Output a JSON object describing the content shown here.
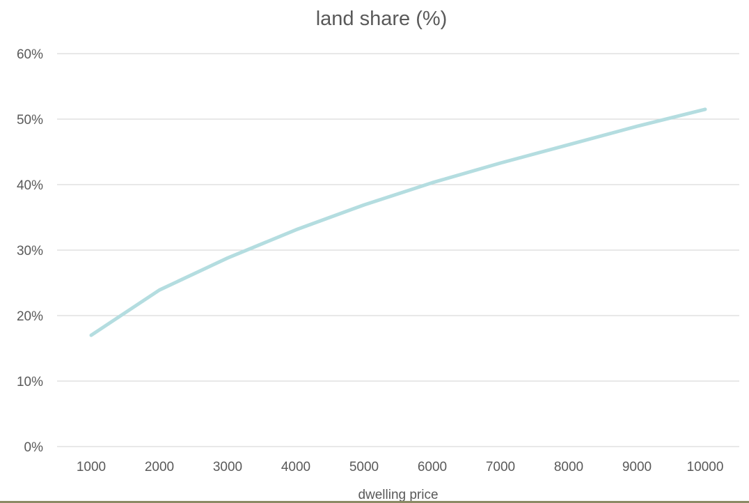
{
  "chart_data": {
    "type": "line",
    "title": "land share (%)",
    "xlabel": "dwelling price",
    "ylabel": "",
    "categories": [
      "1000",
      "2000",
      "3000",
      "4000",
      "5000",
      "6000",
      "7000",
      "8000",
      "9000",
      "10000"
    ],
    "series": [
      {
        "values": [
          17.0,
          23.9,
          28.8,
          33.1,
          36.9,
          40.3,
          43.3,
          46.1,
          48.9,
          51.5
        ],
        "color": "#b4dde0"
      }
    ],
    "ylim": [
      0,
      60
    ],
    "yticks": [
      0,
      10,
      20,
      30,
      40,
      50,
      60
    ],
    "ytick_labels": [
      "0%",
      "10%",
      "20%",
      "30%",
      "40%",
      "50%",
      "60%"
    ],
    "grid": true,
    "legend": "none",
    "colors": {
      "text": "#595959",
      "grid": "#d9d9d9",
      "bottom_rule": "#8b8a64"
    }
  }
}
